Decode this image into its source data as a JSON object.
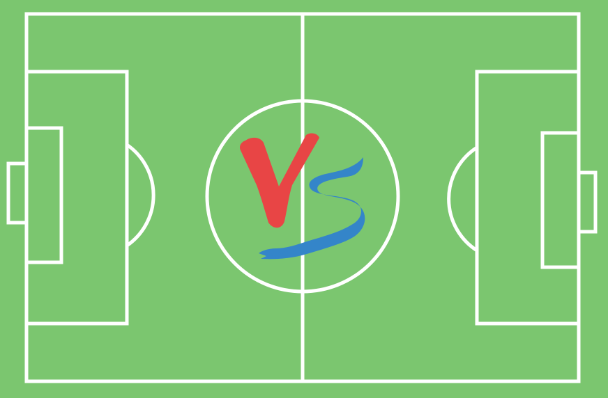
{
  "scene": {
    "type": "soccer-pitch",
    "colors": {
      "grass": "#7bc66f",
      "lines": "#ffffff"
    }
  },
  "emblem": {
    "text": "VS",
    "letters": [
      {
        "char": "V",
        "color": "#e84545"
      },
      {
        "char": "S",
        "color": "#3485c9"
      }
    ]
  }
}
